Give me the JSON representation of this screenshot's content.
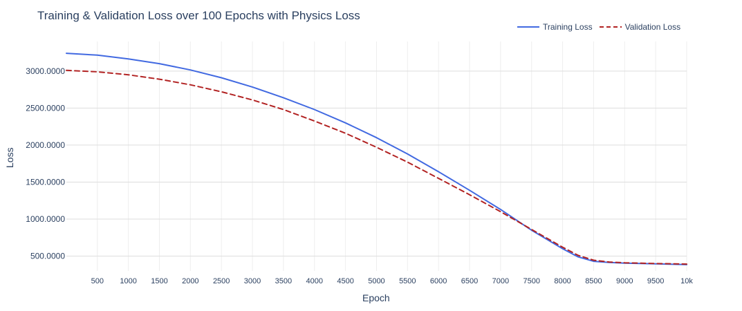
{
  "title": "Training & Validation Loss over 100 Epochs with Physics Loss",
  "legend": {
    "position": "top-right",
    "items": [
      {
        "label": "Training Loss",
        "color": "#4169E1",
        "style": "solid"
      },
      {
        "label": "Validation Loss",
        "color": "#B22222",
        "style": "dashed"
      }
    ]
  },
  "chart_data": {
    "type": "line",
    "title": "Training & Validation Loss over 100 Epochs with Physics Loss",
    "xlabel": "Epoch",
    "ylabel": "Loss",
    "xlim": [
      1,
      10000
    ],
    "ylim": [
      300,
      3400
    ],
    "grid": true,
    "x_ticks": [
      500,
      1000,
      1500,
      2000,
      2500,
      3000,
      3500,
      4000,
      4500,
      5000,
      5500,
      6000,
      6500,
      7000,
      7500,
      8000,
      8500,
      9000,
      9500,
      10000
    ],
    "x_tick_labels": [
      "500",
      "1000",
      "1500",
      "2000",
      "2500",
      "3000",
      "3500",
      "4000",
      "4500",
      "5000",
      "5500",
      "6000",
      "6500",
      "7000",
      "7500",
      "8000",
      "8500",
      "9000",
      "9500",
      "10k"
    ],
    "y_ticks": [
      500,
      1000,
      1500,
      2000,
      2500,
      3000
    ],
    "y_tick_labels": [
      "500.0000",
      "1000.0000",
      "1500.0000",
      "2000.0000",
      "2500.0000",
      "3000.0000"
    ],
    "series": [
      {
        "name": "Training Loss",
        "color": "#4169E1",
        "style": "solid",
        "x": [
          1,
          500,
          1000,
          1500,
          2000,
          2500,
          3000,
          3500,
          4000,
          4500,
          5000,
          5500,
          6000,
          6500,
          7000,
          7500,
          8000,
          8250,
          8500,
          8750,
          9000,
          9500,
          10000
        ],
        "y": [
          3240,
          3215,
          3165,
          3100,
          3015,
          2910,
          2785,
          2640,
          2480,
          2300,
          2100,
          1880,
          1640,
          1390,
          1130,
          850,
          600,
          490,
          430,
          415,
          405,
          395,
          385
        ]
      },
      {
        "name": "Validation Loss",
        "color": "#B22222",
        "style": "dashed",
        "x": [
          1,
          500,
          1000,
          1500,
          2000,
          2500,
          3000,
          3500,
          4000,
          4500,
          5000,
          5500,
          6000,
          6500,
          7000,
          7500,
          8000,
          8250,
          8500,
          8750,
          9000,
          9500,
          10000
        ],
        "y": [
          3010,
          2990,
          2950,
          2890,
          2815,
          2720,
          2610,
          2480,
          2325,
          2160,
          1970,
          1770,
          1550,
          1330,
          1100,
          860,
          620,
          510,
          445,
          420,
          410,
          400,
          392
        ]
      }
    ]
  }
}
